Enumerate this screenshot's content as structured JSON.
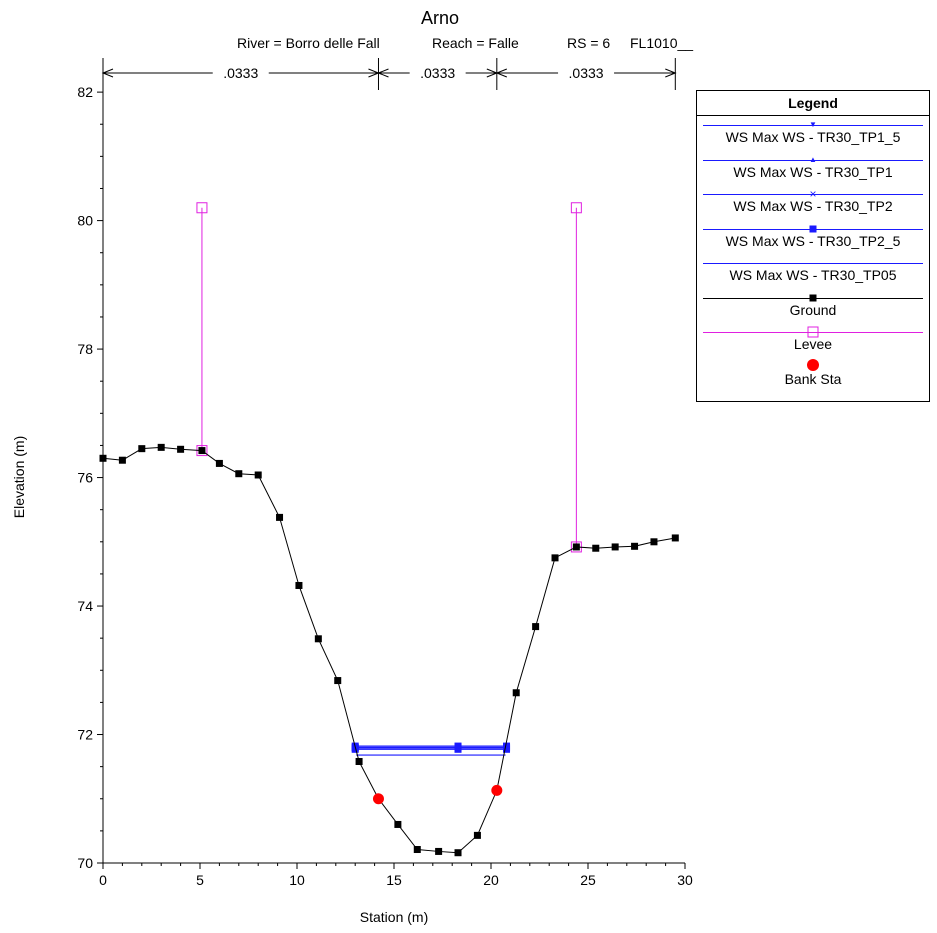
{
  "chart_data": {
    "type": "line",
    "title": "Arno",
    "subtitle": {
      "river": "River = Borro delle Fall",
      "reach": "Reach = Falle",
      "rs": "RS = 6",
      "profile": "FL1010__"
    },
    "xlabel": "Station (m)",
    "ylabel": "Elevation (m)",
    "xlim": [
      0,
      30
    ],
    "ylim": [
      70,
      82.5
    ],
    "x_ticks": [
      "0",
      "5",
      "10",
      "15",
      "20",
      "25",
      "30"
    ],
    "y_ticks": [
      "70",
      "72",
      "74",
      "76",
      "78",
      "80",
      "82"
    ],
    "grid": false,
    "legend_position": "right",
    "manning_n": {
      "labels": [
        ".0333",
        ".0333",
        ".0333"
      ],
      "breaks": [
        0,
        14.2,
        20.3,
        29.5
      ]
    },
    "legend": {
      "title": "Legend",
      "entries": [
        {
          "label": "WS Max WS - TR30_TP1_5",
          "color": "#1a1aff",
          "marker": "triangle-down"
        },
        {
          "label": "WS Max WS - TR30_TP1",
          "color": "#1a1aff",
          "marker": "triangle-up"
        },
        {
          "label": "WS Max WS - TR30_TP2",
          "color": "#1a1aff",
          "marker": "x"
        },
        {
          "label": "WS Max WS - TR30_TP2_5",
          "color": "#1a1aff",
          "marker": "square"
        },
        {
          "label": "WS Max WS - TR30_TP05",
          "color": "#1a1aff",
          "marker": "none"
        },
        {
          "label": "Ground",
          "color": "#000000",
          "marker": "square"
        },
        {
          "label": "Levee",
          "color": "#e020e0",
          "marker": "open-square"
        },
        {
          "label": "Bank Sta",
          "color": "#ff0000",
          "marker": "circle"
        }
      ]
    },
    "series": [
      {
        "name": "Ground",
        "color": "#000000",
        "marker": "square",
        "x": [
          0,
          1,
          2,
          3,
          4,
          5.1,
          6,
          7,
          8,
          9.1,
          10.1,
          11.1,
          12.1,
          13.2,
          14.2,
          15.2,
          16.2,
          17.3,
          18.3,
          19.3,
          20.3,
          21.3,
          22.3,
          23.3,
          24.4,
          25.4,
          26.4,
          27.4,
          28.4,
          29.5
        ],
        "y": [
          76.3,
          76.27,
          76.45,
          76.47,
          76.44,
          76.42,
          76.22,
          76.06,
          76.04,
          75.38,
          74.32,
          73.49,
          72.84,
          71.58,
          71.0,
          70.6,
          70.21,
          70.18,
          70.16,
          70.43,
          71.13,
          72.65,
          73.68,
          74.75,
          74.92,
          74.9,
          74.92,
          74.93,
          75.0,
          75.06
        ]
      },
      {
        "name": "Levee",
        "color": "#e020e0",
        "marker": "open-square",
        "levees": [
          {
            "x": 5.1,
            "top": 80.2,
            "bottom": 76.42
          },
          {
            "x": 24.4,
            "top": 80.2,
            "bottom": 74.92
          }
        ]
      },
      {
        "name": "Bank Sta",
        "color": "#ff0000",
        "marker": "circle",
        "x": [
          14.2,
          20.3
        ],
        "y": [
          71.0,
          71.13
        ]
      },
      {
        "name": "WS Max WS - TR30_TP1_5",
        "color": "#1a1aff",
        "x": [
          13.0,
          18.3,
          20.8
        ],
        "y": [
          71.82,
          71.82,
          71.82
        ]
      },
      {
        "name": "WS Max WS - TR30_TP1",
        "color": "#1a1aff",
        "x": [
          13.0,
          18.3,
          20.8
        ],
        "y": [
          71.8,
          71.8,
          71.8
        ]
      },
      {
        "name": "WS Max WS - TR30_TP2",
        "color": "#1a1aff",
        "x": [
          13.0,
          18.3,
          20.8
        ],
        "y": [
          71.79,
          71.79,
          71.79
        ]
      },
      {
        "name": "WS Max WS - TR30_TP2_5",
        "color": "#1a1aff",
        "x": [
          13.0,
          18.3,
          20.8
        ],
        "y": [
          71.77,
          71.77,
          71.77
        ]
      },
      {
        "name": "WS Max WS - TR30_TP05",
        "color": "#1a1aff",
        "x": [
          13.05,
          20.75
        ],
        "y": [
          71.68,
          71.68
        ]
      }
    ]
  }
}
